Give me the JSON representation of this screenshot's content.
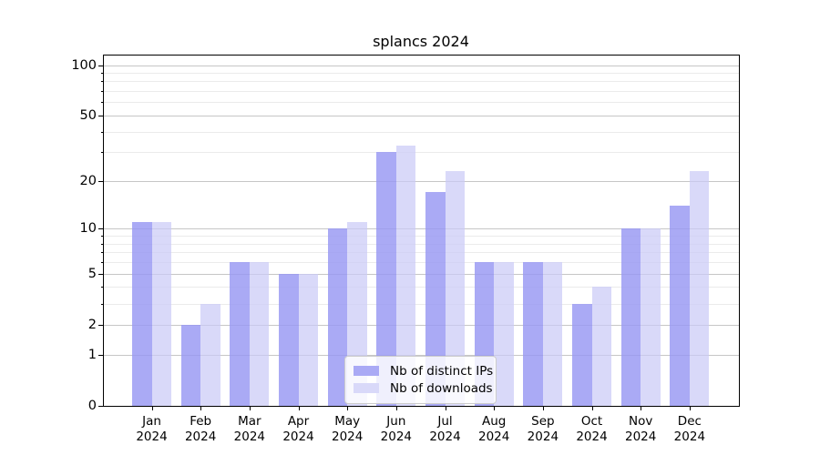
{
  "chart_data": {
    "type": "bar",
    "title": "splancs 2024",
    "y_scale": "log1p",
    "grid": "both",
    "categories": [
      "Jan 2024",
      "Feb 2024",
      "Mar 2024",
      "Apr 2024",
      "May 2024",
      "Jun 2024",
      "Jul 2024",
      "Aug 2024",
      "Sep 2024",
      "Oct 2024",
      "Nov 2024",
      "Dec 2024"
    ],
    "month_labels": [
      "Jan",
      "Feb",
      "Mar",
      "Apr",
      "May",
      "Jun",
      "Jul",
      "Aug",
      "Sep",
      "Oct",
      "Nov",
      "Dec"
    ],
    "year_label": "2024",
    "series": [
      {
        "name": "Nb of distinct IPs",
        "color": "#aaaaf5",
        "values": [
          11,
          2,
          6,
          5,
          10,
          30,
          17,
          6,
          6,
          3,
          10,
          14
        ]
      },
      {
        "name": "Nb of downloads",
        "color": "#d9d9f9",
        "values": [
          11,
          3,
          6,
          5,
          11,
          33,
          23,
          6,
          6,
          4,
          10,
          23
        ]
      }
    ],
    "y_major_ticks": [
      0,
      1,
      2,
      5,
      10,
      20,
      50,
      100
    ],
    "y_minor_ticks": [
      3,
      4,
      6,
      7,
      8,
      9,
      30,
      40,
      60,
      70,
      80,
      90
    ],
    "ylim": [
      0,
      114
    ],
    "xlabel": "",
    "ylabel": "",
    "legend_position": "inside lower center"
  },
  "colors": {
    "grid_major": "#c6c6c6",
    "grid_minor": "#ebebeb",
    "axis": "#000000",
    "background": "#ffffff"
  }
}
